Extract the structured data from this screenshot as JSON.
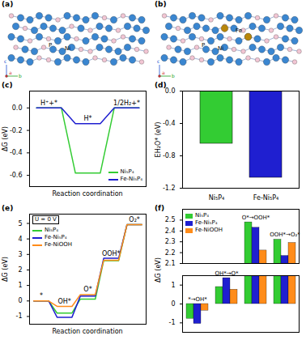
{
  "structures": [
    {
      "panel": "(a)",
      "atom_labels": [
        "P",
        "Ni"
      ],
      "axes": [
        "c",
        "a",
        "b"
      ]
    },
    {
      "panel": "(b)",
      "atom_labels": [
        "P",
        "Ni",
        "Fe"
      ],
      "axes": [
        "c",
        "a",
        "b"
      ]
    }
  ],
  "chart_data": [
    {
      "panel": "(c)",
      "type": "energy_diagram",
      "xlabel": "Reaction coordination",
      "ylabel": "ΔG (eV)",
      "states": [
        "H⁺+*",
        "H*",
        "1/2H₂+*"
      ],
      "series": [
        {
          "name": "Ni₅P₄",
          "color": "#33cc33",
          "values": [
            0,
            -0.58,
            0
          ]
        },
        {
          "name": "Fe-Ni₅P₄",
          "color": "#1f1fd0",
          "values": [
            0,
            -0.14,
            0
          ]
        }
      ],
      "ylim": [
        -0.7,
        0.15
      ],
      "yticks": [
        {
          "value": 0,
          "label": "0.0"
        },
        -0.2,
        -0.4,
        -0.6
      ],
      "legend": "bottom-right"
    },
    {
      "panel": "(d)",
      "type": "bar",
      "ylabel": "EH₂O* (eV)",
      "categories": [
        "Ni₅P₄",
        "Fe-Ni₅P₄"
      ],
      "values": [
        -0.65,
        -1.07
      ],
      "colors": [
        "#33cc33",
        "#1f1fd0"
      ],
      "ylim": [
        -1.2,
        0
      ],
      "yticks": [
        {
          "value": 0,
          "label": "0.0"
        },
        -0.4,
        -0.8,
        -1.2
      ]
    },
    {
      "panel": "(e)",
      "type": "energy_diagram",
      "xlabel": "Reaction coordination",
      "ylabel": "ΔG (eV)",
      "annotations": [
        "U = 0 V"
      ],
      "states": [
        "*",
        "OH*",
        "O*",
        "OOH*",
        "O₂*"
      ],
      "series": [
        {
          "name": "Ni₅P₄",
          "color": "#33cc33",
          "values": [
            0,
            -0.78,
            0.12,
            2.6,
            4.92
          ]
        },
        {
          "name": "Fe-Ni₅P₄",
          "color": "#1f1fd0",
          "values": [
            0,
            -1.05,
            0.32,
            2.75,
            4.92
          ]
        },
        {
          "name": "Fe-NiOOH",
          "color": "#ff8c1a",
          "values": [
            0,
            -0.35,
            0.41,
            2.63,
            4.92
          ]
        }
      ],
      "ylim": [
        -1.5,
        5.6
      ],
      "yticks": [
        -1,
        0,
        1,
        2,
        3,
        4,
        5
      ],
      "legend": "top-left"
    },
    {
      "panel": "(f)",
      "type": "bar",
      "ylabel": "ΔG (eV)",
      "categories": [
        "*→OH*",
        "OH*→O*",
        "O*→OOH*",
        "OOH*→O₂*"
      ],
      "series": [
        {
          "name": "Ni₅P₄",
          "color": "#33cc33",
          "values": [
            -0.78,
            0.9,
            2.48,
            2.32
          ]
        },
        {
          "name": "Fe-Ni₅P₄",
          "color": "#1f1fd0",
          "values": [
            -1.05,
            1.37,
            2.43,
            2.17
          ]
        },
        {
          "name": "Fe-NiOOH",
          "color": "#ff8c1a",
          "values": [
            -0.35,
            0.76,
            2.22,
            2.29
          ]
        }
      ],
      "y_segments": [
        {
          "ylim": [
            2.1,
            2.6
          ],
          "yticks": [
            2.1,
            2.2,
            2.3,
            2.4,
            2.5
          ]
        },
        {
          "ylim": [
            -1.5,
            1.5
          ],
          "yticks": [
            -1,
            0,
            1
          ]
        }
      ],
      "legend": "top-left"
    }
  ]
}
